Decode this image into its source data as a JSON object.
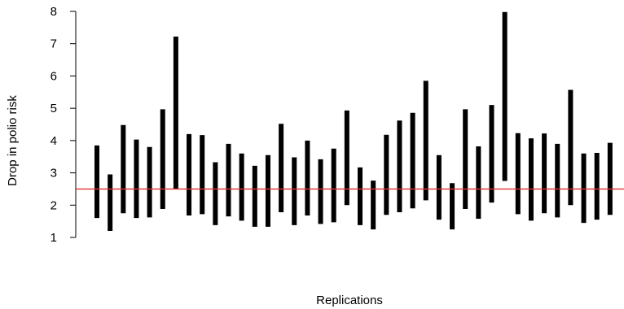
{
  "chart_data": {
    "type": "interval",
    "xlabel": "Replications",
    "ylabel": "Drop in polio risk",
    "ylim": [
      1,
      8
    ],
    "yticks": [
      1,
      2,
      3,
      4,
      5,
      6,
      7,
      8
    ],
    "reference_line": {
      "value": 2.5,
      "color": "#e03030"
    },
    "grid": false,
    "series": [
      {
        "intervals": [
          [
            1.6,
            3.85
          ],
          [
            1.2,
            2.95
          ],
          [
            1.75,
            4.48
          ],
          [
            1.6,
            4.03
          ],
          [
            1.62,
            3.8
          ],
          [
            1.88,
            4.97
          ],
          [
            2.5,
            7.22
          ],
          [
            1.68,
            4.2
          ],
          [
            1.72,
            4.17
          ],
          [
            1.38,
            3.33
          ],
          [
            1.65,
            3.9
          ],
          [
            1.52,
            3.6
          ],
          [
            1.33,
            3.22
          ],
          [
            1.33,
            3.55
          ],
          [
            1.78,
            4.52
          ],
          [
            1.38,
            3.48
          ],
          [
            1.68,
            4.0
          ],
          [
            1.42,
            3.42
          ],
          [
            1.47,
            3.75
          ],
          [
            2.0,
            4.93
          ],
          [
            1.38,
            3.17
          ],
          [
            1.25,
            2.76
          ],
          [
            1.7,
            4.18
          ],
          [
            1.78,
            4.62
          ],
          [
            1.9,
            4.86
          ],
          [
            2.15,
            5.85
          ],
          [
            1.55,
            3.55
          ],
          [
            1.25,
            2.68
          ],
          [
            1.88,
            4.97
          ],
          [
            1.58,
            3.82
          ],
          [
            2.08,
            5.1
          ],
          [
            2.75,
            7.98
          ],
          [
            1.72,
            4.23
          ],
          [
            1.52,
            4.07
          ],
          [
            1.75,
            4.22
          ],
          [
            1.62,
            3.9
          ],
          [
            2.0,
            5.57
          ],
          [
            1.45,
            3.6
          ],
          [
            1.55,
            3.62
          ],
          [
            1.7,
            3.93
          ]
        ]
      }
    ]
  }
}
